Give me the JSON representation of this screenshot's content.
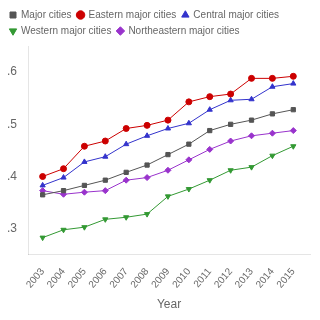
{
  "chart_data": {
    "type": "line",
    "x": [
      2003,
      2004,
      2005,
      2006,
      2007,
      2008,
      2009,
      2010,
      2011,
      2012,
      2013,
      2014,
      2015
    ],
    "xlabel": "Year",
    "xlim": [
      2002.3,
      2015.8
    ],
    "xticks": [
      2003,
      2004,
      2005,
      2006,
      2007,
      2008,
      2009,
      2010,
      2011,
      2012,
      2013,
      2014,
      2015
    ],
    "ylim": [
      0.25,
      0.65
    ],
    "yticks": [
      {
        "value": 0.3,
        "label": ".3"
      },
      {
        "value": 0.4,
        "label": ".4"
      },
      {
        "value": 0.5,
        "label": ".5"
      },
      {
        "value": 0.6,
        "label": ".6"
      }
    ],
    "grid": false,
    "legend": "upper left",
    "series": [
      {
        "name": "Major cities",
        "color": "#555555",
        "marker": "square",
        "values": [
          0.365,
          0.373,
          0.383,
          0.393,
          0.408,
          0.422,
          0.442,
          0.462,
          0.488,
          0.5,
          0.508,
          0.52,
          0.528
        ]
      },
      {
        "name": "Eastern major cities",
        "color": "#cc0000",
        "marker": "circle",
        "values": [
          0.4,
          0.415,
          0.458,
          0.468,
          0.492,
          0.498,
          0.508,
          0.543,
          0.553,
          0.558,
          0.588,
          0.588,
          0.592
        ]
      },
      {
        "name": "Central major cities",
        "color": "#3333cc",
        "marker": "triangle-up",
        "values": [
          0.383,
          0.398,
          0.428,
          0.438,
          0.462,
          0.478,
          0.492,
          0.502,
          0.528,
          0.546,
          0.548,
          0.572,
          0.578
        ]
      },
      {
        "name": "Western major cities",
        "color": "#339933",
        "marker": "triangle-down",
        "values": [
          0.283,
          0.298,
          0.303,
          0.318,
          0.322,
          0.328,
          0.362,
          0.376,
          0.393,
          0.412,
          0.418,
          0.44,
          0.458
        ]
      },
      {
        "name": "Northeastern major cities",
        "color": "#9933cc",
        "marker": "diamond",
        "values": [
          0.373,
          0.366,
          0.37,
          0.373,
          0.393,
          0.398,
          0.412,
          0.432,
          0.452,
          0.468,
          0.478,
          0.483,
          0.488
        ]
      }
    ]
  }
}
